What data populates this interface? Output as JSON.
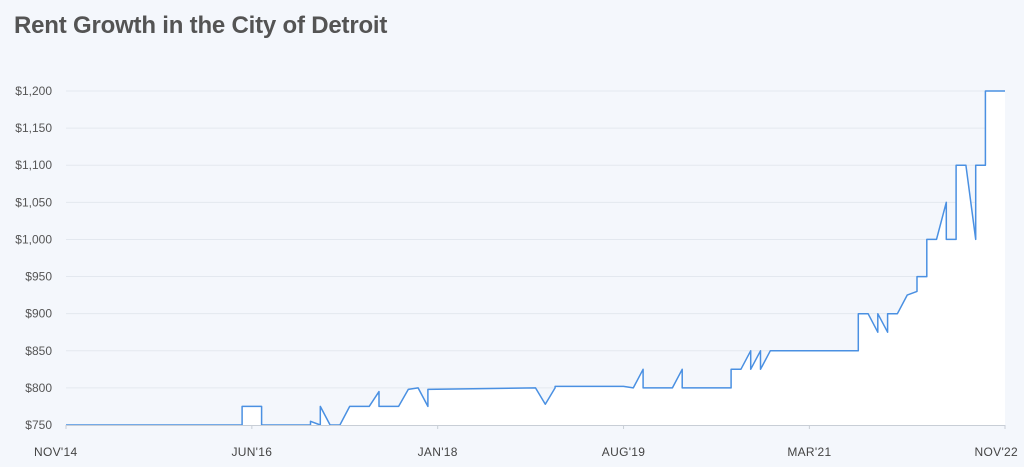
{
  "chart_data": {
    "type": "line",
    "title": "Rent Growth in the City of Detroit",
    "xlabel": "",
    "ylabel": "",
    "ylim": [
      750,
      1200
    ],
    "y_ticks": [
      750,
      800,
      850,
      900,
      950,
      1000,
      1050,
      1100,
      1150,
      1200
    ],
    "y_tick_labels": [
      "$750",
      "$800",
      "$850",
      "$900",
      "$950",
      "$1,000",
      "$1,050",
      "$1,100",
      "$1,150",
      "$1,200"
    ],
    "x_range": [
      "2014-11",
      "2022-11"
    ],
    "x_ticks": [
      {
        "date": "2014-11",
        "label": "NOV'14"
      },
      {
        "date": "2016-06",
        "label": "JUN'16"
      },
      {
        "date": "2018-01",
        "label": "JAN'18"
      },
      {
        "date": "2019-08",
        "label": "AUG'19"
      },
      {
        "date": "2021-03",
        "label": "MAR'21"
      },
      {
        "date": "2022-11",
        "label": "NOV'22"
      }
    ],
    "grid": true,
    "colors": {
      "line": "#4a90e2",
      "area": "#ffffff",
      "grid": "#e3e8ef",
      "axis": "#c8ced6"
    },
    "series": [
      {
        "points": [
          [
            "2014-11",
            750
          ],
          [
            "2016-05",
            750
          ],
          [
            "2016-05",
            775
          ],
          [
            "2016-07",
            775
          ],
          [
            "2016-07",
            750
          ],
          [
            "2016-12",
            750
          ],
          [
            "2016-12",
            755
          ],
          [
            "2017-01",
            750
          ],
          [
            "2017-01",
            775
          ],
          [
            "2017-02",
            750
          ],
          [
            "2017-03",
            750
          ],
          [
            "2017-04",
            775
          ],
          [
            "2017-06",
            775
          ],
          [
            "2017-07",
            795
          ],
          [
            "2017-07",
            775
          ],
          [
            "2017-09",
            775
          ],
          [
            "2017-10",
            798
          ],
          [
            "2017-11",
            800
          ],
          [
            "2017-12",
            775
          ],
          [
            "2017-12",
            798
          ],
          [
            "2018-11",
            800
          ],
          [
            "2018-12",
            778
          ],
          [
            "2019-01",
            800
          ],
          [
            "2019-01",
            802
          ],
          [
            "2019-08",
            802
          ],
          [
            "2019-09",
            800
          ],
          [
            "2019-10",
            825
          ],
          [
            "2019-10",
            800
          ],
          [
            "2020-01",
            800
          ],
          [
            "2020-02",
            825
          ],
          [
            "2020-02",
            800
          ],
          [
            "2020-03",
            800
          ],
          [
            "2020-03",
            800
          ],
          [
            "2020-07",
            800
          ],
          [
            "2020-07",
            825
          ],
          [
            "2020-08",
            825
          ],
          [
            "2020-09",
            850
          ],
          [
            "2020-09",
            825
          ],
          [
            "2020-10",
            850
          ],
          [
            "2020-10",
            825
          ],
          [
            "2020-11",
            850
          ],
          [
            "2021-01",
            850
          ],
          [
            "2021-02",
            850
          ],
          [
            "2021-03",
            850
          ],
          [
            "2021-04",
            850
          ],
          [
            "2021-05",
            850
          ],
          [
            "2021-06",
            850
          ],
          [
            "2021-07",
            850
          ],
          [
            "2021-08",
            850
          ],
          [
            "2021-08",
            900
          ],
          [
            "2021-09",
            900
          ],
          [
            "2021-10",
            875
          ],
          [
            "2021-10",
            900
          ],
          [
            "2021-11",
            875
          ],
          [
            "2021-11",
            900
          ],
          [
            "2021-12",
            900
          ],
          [
            "2022-01",
            925
          ],
          [
            "2022-02",
            930
          ],
          [
            "2022-02",
            950
          ],
          [
            "2022-03",
            950
          ],
          [
            "2022-03",
            1000
          ],
          [
            "2022-04",
            1000
          ],
          [
            "2022-05",
            1050
          ],
          [
            "2022-05",
            1000
          ],
          [
            "2022-06",
            1000
          ],
          [
            "2022-06",
            1100
          ],
          [
            "2022-07",
            1100
          ],
          [
            "2022-08",
            1000
          ],
          [
            "2022-08",
            1100
          ],
          [
            "2022-09",
            1100
          ],
          [
            "2022-09",
            1200
          ],
          [
            "2022-10",
            1200
          ],
          [
            "2022-11",
            1200
          ]
        ]
      }
    ]
  }
}
